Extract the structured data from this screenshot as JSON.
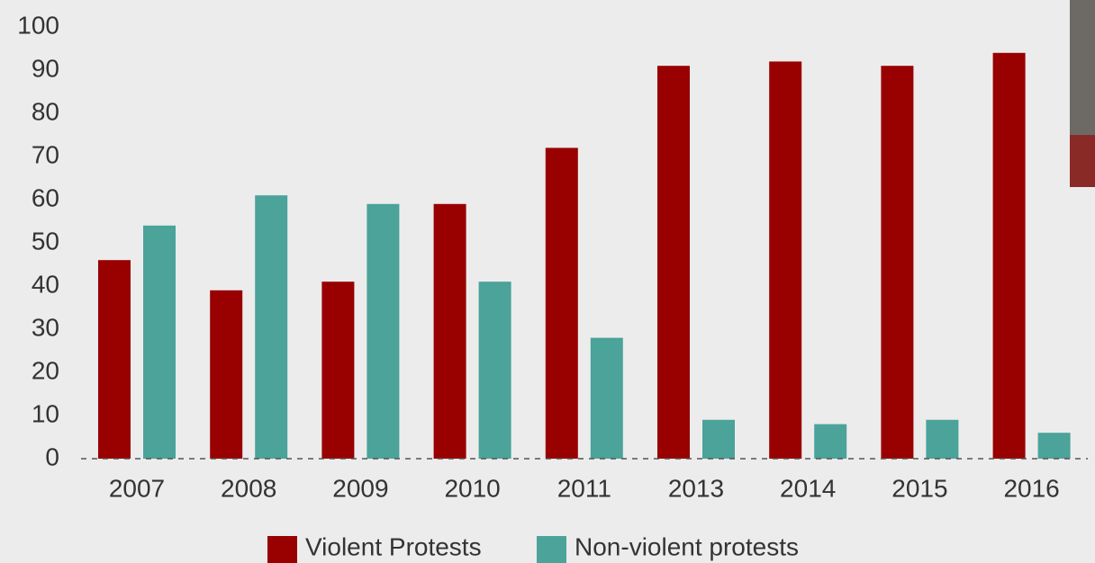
{
  "chart_data": {
    "type": "bar",
    "categories": [
      "2007",
      "2008",
      "2009",
      "2010",
      "2011",
      "2013",
      "2014",
      "2015",
      "2016"
    ],
    "series": [
      {
        "name": "Violent Protests",
        "color": "#990000",
        "values": [
          46,
          39,
          41,
          59,
          72,
          91,
          92,
          91,
          94
        ]
      },
      {
        "name": "Non-violent protests",
        "color": "#4ba39a",
        "values": [
          54,
          61,
          59,
          41,
          28,
          9,
          8,
          9,
          6
        ]
      }
    ],
    "ylim": [
      0,
      100
    ],
    "yticks": [
      0,
      10,
      20,
      30,
      40,
      50,
      60,
      70,
      80,
      90,
      100
    ],
    "grid": false,
    "legend": "bottom"
  }
}
